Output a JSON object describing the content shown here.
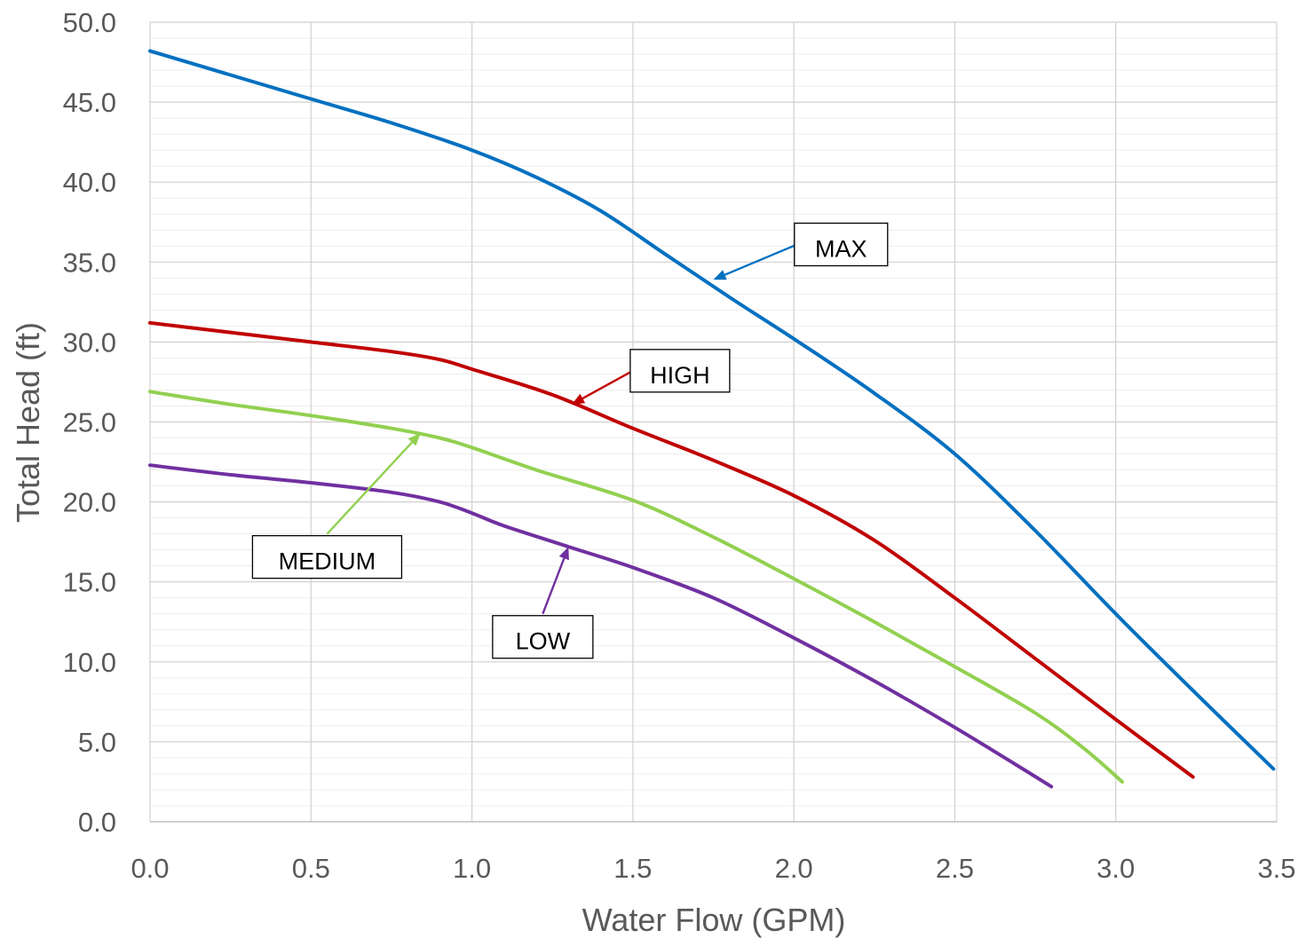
{
  "chart_data": {
    "type": "line",
    "title": "",
    "xlabel": "Water Flow (GPM)",
    "ylabel": "Total Head (ft)",
    "xlim": [
      0,
      3.5
    ],
    "ylim": [
      0,
      50
    ],
    "x_ticks": [
      "0.0",
      "0.5",
      "1.0",
      "1.5",
      "2.0",
      "2.5",
      "3.0",
      "3.5"
    ],
    "y_ticks": [
      "0.0",
      "5.0",
      "10.0",
      "15.0",
      "20.0",
      "25.0",
      "30.0",
      "35.0",
      "40.0",
      "45.0",
      "50.0"
    ],
    "x_tick_values": [
      0,
      0.5,
      1.0,
      1.5,
      2.0,
      2.5,
      3.0,
      3.5
    ],
    "y_tick_values": [
      0,
      5,
      10,
      15,
      20,
      25,
      30,
      35,
      40,
      45,
      50
    ],
    "y_minor_step": 1,
    "grid": true,
    "legend": "none",
    "series": [
      {
        "name": "MAX",
        "color": "#0070c0",
        "points": [
          [
            0,
            48.2
          ],
          [
            0.25,
            46.7
          ],
          [
            0.5,
            45.2
          ],
          [
            0.75,
            43.7
          ],
          [
            1.0,
            42.0
          ],
          [
            1.2,
            40.3
          ],
          [
            1.4,
            38.2
          ],
          [
            1.6,
            35.5
          ],
          [
            1.8,
            32.8
          ],
          [
            2.0,
            30.2
          ],
          [
            2.25,
            26.8
          ],
          [
            2.5,
            23.0
          ],
          [
            2.75,
            18.2
          ],
          [
            3.0,
            13.0
          ],
          [
            3.25,
            8.0
          ],
          [
            3.49,
            3.3
          ]
        ]
      },
      {
        "name": "HIGH",
        "color": "#c00000",
        "points": [
          [
            0,
            31.2
          ],
          [
            0.25,
            30.6
          ],
          [
            0.5,
            30.0
          ],
          [
            0.75,
            29.4
          ],
          [
            0.9,
            28.9
          ],
          [
            1.0,
            28.3
          ],
          [
            1.25,
            26.7
          ],
          [
            1.5,
            24.6
          ],
          [
            1.75,
            22.6
          ],
          [
            2.0,
            20.4
          ],
          [
            2.25,
            17.6
          ],
          [
            2.5,
            14.0
          ],
          [
            2.75,
            10.2
          ],
          [
            3.0,
            6.4
          ],
          [
            3.24,
            2.8
          ]
        ]
      },
      {
        "name": "MEDIUM",
        "color": "#92d050",
        "points": [
          [
            0,
            26.9
          ],
          [
            0.25,
            26.1
          ],
          [
            0.5,
            25.4
          ],
          [
            0.75,
            24.6
          ],
          [
            0.9,
            24.0
          ],
          [
            1.0,
            23.4
          ],
          [
            1.2,
            22.0
          ],
          [
            1.5,
            20.1
          ],
          [
            1.75,
            17.8
          ],
          [
            2.0,
            15.2
          ],
          [
            2.25,
            12.5
          ],
          [
            2.5,
            9.7
          ],
          [
            2.75,
            6.8
          ],
          [
            2.9,
            4.6
          ],
          [
            3.02,
            2.5
          ]
        ]
      },
      {
        "name": "LOW",
        "color": "#7030a0",
        "points": [
          [
            0,
            22.3
          ],
          [
            0.25,
            21.7
          ],
          [
            0.5,
            21.2
          ],
          [
            0.75,
            20.6
          ],
          [
            0.9,
            20.0
          ],
          [
            1.0,
            19.3
          ],
          [
            1.1,
            18.5
          ],
          [
            1.3,
            17.2
          ],
          [
            1.5,
            15.9
          ],
          [
            1.75,
            14.0
          ],
          [
            2.0,
            11.5
          ],
          [
            2.25,
            8.8
          ],
          [
            2.5,
            5.9
          ],
          [
            2.8,
            2.2
          ]
        ]
      }
    ],
    "annotations": [
      {
        "text": "MAX",
        "series": "MAX",
        "box_anchor": [
          2.01,
          36.1
        ],
        "arrow_to": [
          1.75,
          33.9
        ],
        "box_w": 105,
        "box_h": 48,
        "align": "left"
      },
      {
        "text": "HIGH",
        "series": "HIGH",
        "box_anchor": [
          1.5,
          28.2
        ],
        "arrow_to": [
          1.31,
          26.1
        ],
        "box_w": 112,
        "box_h": 48,
        "align": "left"
      },
      {
        "text": "MEDIUM",
        "series": "MEDIUM",
        "box_anchor": [
          0.55,
          18.0
        ],
        "arrow_to": [
          0.84,
          24.3
        ],
        "box_w": 168,
        "box_h": 48,
        "align": "top"
      },
      {
        "text": "LOW",
        "series": "LOW",
        "box_anchor": [
          1.22,
          13.0
        ],
        "arrow_to": [
          1.3,
          17.2
        ],
        "box_w": 113,
        "box_h": 48,
        "align": "top"
      }
    ]
  }
}
